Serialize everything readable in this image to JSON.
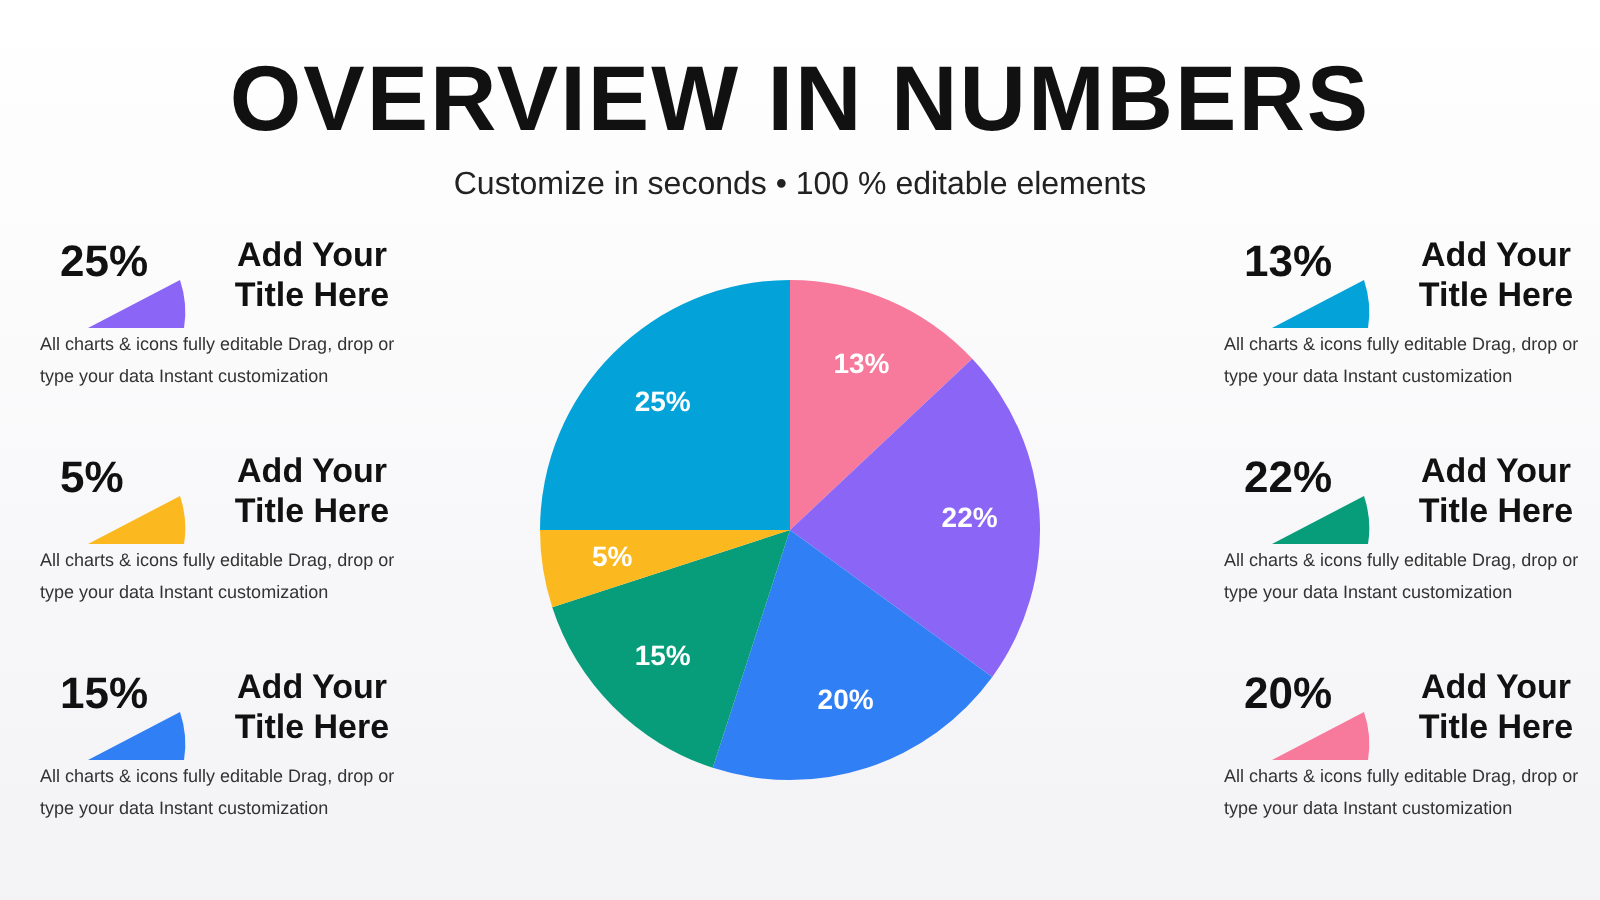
{
  "chart_data": {
    "type": "pie",
    "title": "OVERVIEW IN NUMBERS",
    "subtitle": "Customize in seconds • 100 % editable elements",
    "categories": [
      null,
      null,
      null,
      null,
      null,
      null
    ],
    "values": [
      13,
      22,
      20,
      15,
      5,
      25
    ],
    "colors": [
      "#f7799b",
      "#8b65f5",
      "#317ff5",
      "#079d7a",
      "#fbb91f",
      "#03a3d9"
    ],
    "value_labels": [
      "13%",
      "22%",
      "20%",
      "15%",
      "5%",
      "25%"
    ],
    "legend": false,
    "annotations": [
      "25%",
      "Add Your Title Here",
      "All charts & icons fully editable Drag, drop or type your data Instant customization",
      "5%",
      "Add Your Title Here",
      "All charts & icons fully editable Drag, drop or type your data Instant customization",
      "15%",
      "Add Your Title Here",
      "All charts & icons fully editable Drag, drop or type your data Instant customization",
      "13%",
      "Add Your Title Here",
      "All charts & icons fully editable Drag, drop or type your data Instant customization",
      "22%",
      "Add Your Title Here",
      "All charts & icons fully editable Drag, drop or type your data Instant customization",
      "20%",
      "Add Your Title Here",
      "All charts & icons fully editable Drag, drop or type your data Instant customization"
    ]
  }
}
